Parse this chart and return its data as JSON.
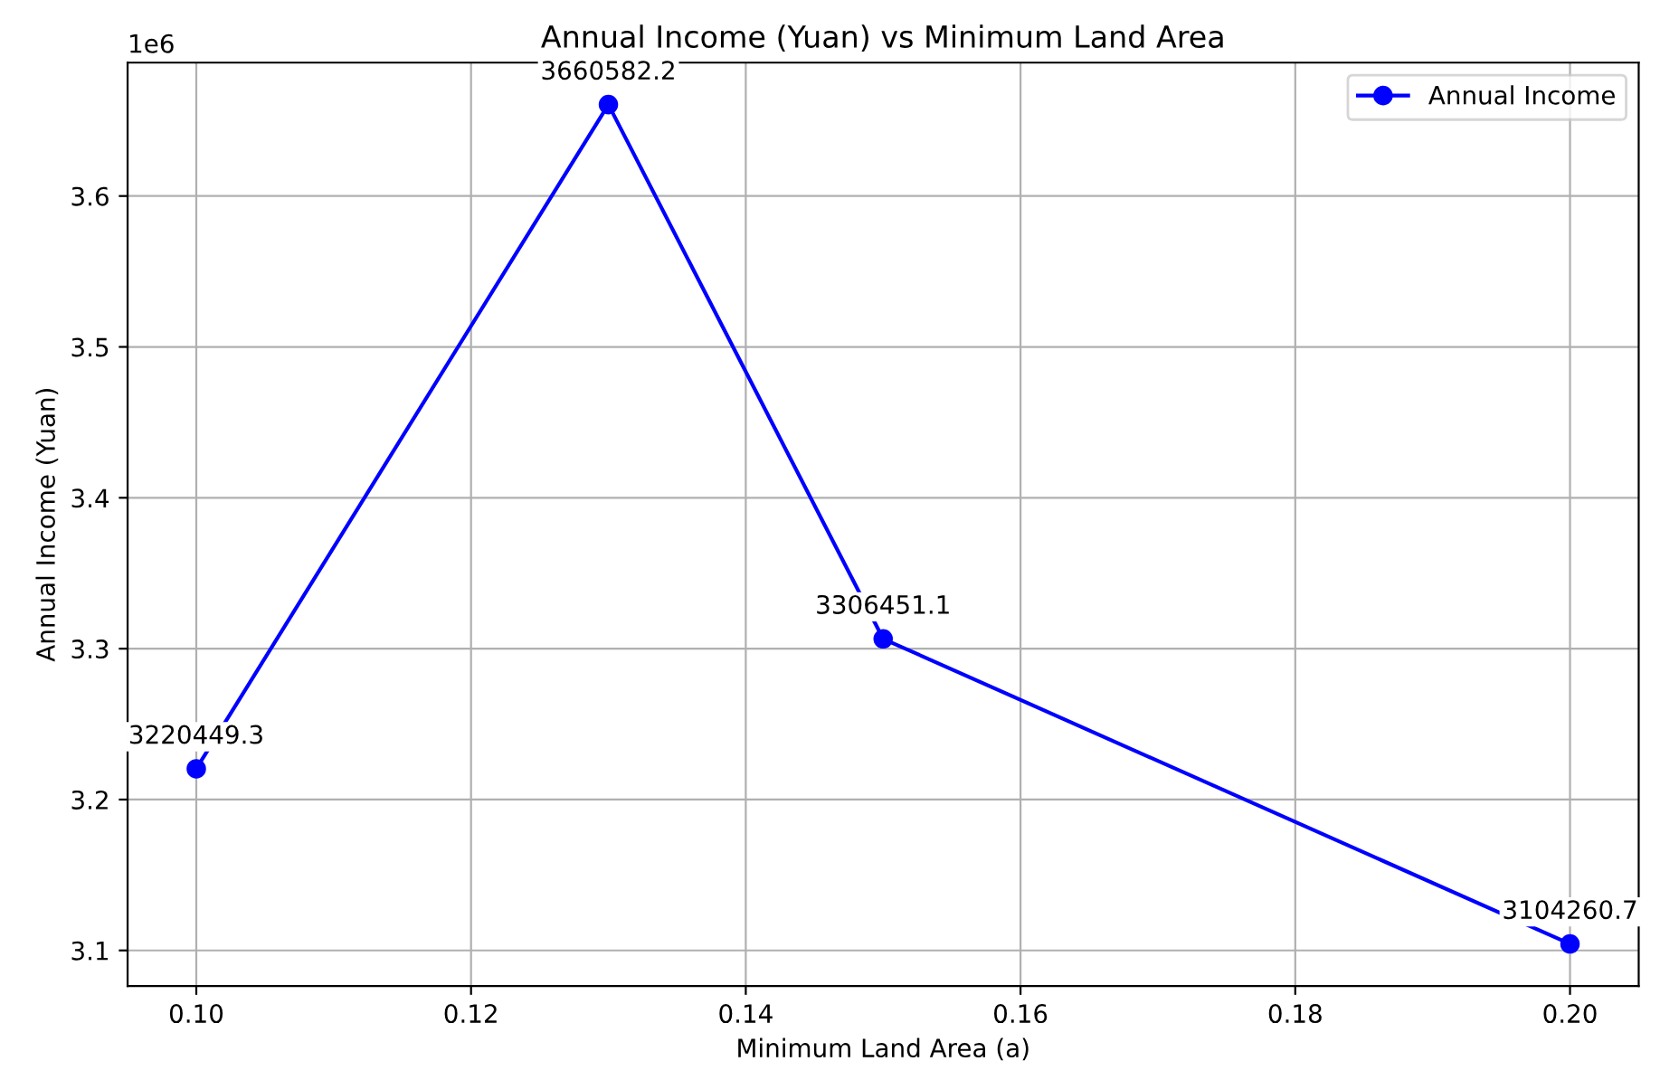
{
  "chart_data": {
    "type": "line",
    "title": "Annual Income (Yuan) vs Minimum Land Area",
    "xlabel": "Minimum Land Area (a)",
    "ylabel": "Annual Income (Yuan)",
    "x": [
      0.1,
      0.13,
      0.15,
      0.2
    ],
    "series": [
      {
        "name": "Annual Income",
        "color": "#0000ff",
        "values": [
          3.2204,
          3.6606,
          3.3065,
          3.1043
        ]
      }
    ],
    "xlim": [
      0.095,
      0.205
    ],
    "xticks": [
      {
        "value": 0.1,
        "label": "0.10"
      },
      {
        "value": 0.12,
        "label": "0.12"
      },
      {
        "value": 0.14,
        "label": "0.14"
      },
      {
        "value": 0.16,
        "label": "0.16"
      },
      {
        "value": 0.18,
        "label": "0.18"
      },
      {
        "value": 0.2,
        "label": "0.20"
      }
    ],
    "ylim": [
      3.0764,
      3.6884
    ],
    "yticks": [
      3.1,
      3.2,
      3.3,
      3.4,
      3.5,
      3.6
    ],
    "annotations": [
      "1e6",
      {
        "text": "3220449.3",
        "x": 0.1,
        "y": 3.2204
      },
      {
        "text": "3660582.2",
        "x": 0.13,
        "y": 3.6606
      },
      {
        "text": "3306451.1",
        "x": 0.15,
        "y": 3.3065
      },
      {
        "text": "3104260.7",
        "x": 0.2,
        "y": 3.1043
      }
    ],
    "grid": true,
    "legend": "top right",
    "marker": "circle",
    "line_style": "solid"
  }
}
